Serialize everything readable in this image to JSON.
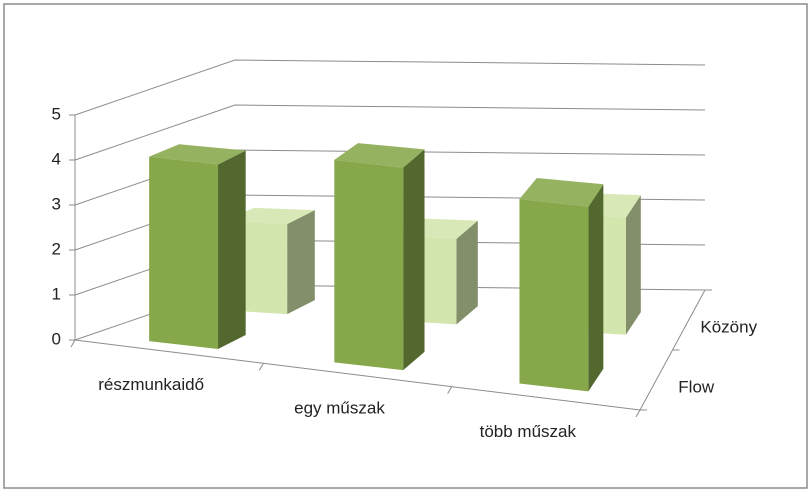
{
  "chart_data": {
    "type": "bar3d",
    "categories": [
      "részmunkaidő",
      "egy műszak",
      "több műszak"
    ],
    "series": [
      {
        "name": "Flow",
        "color": "#86a84a",
        "values": [
          4.1,
          4.5,
          4.1
        ]
      },
      {
        "name": "Közöny",
        "color": "#d3e6ad",
        "values": [
          2.0,
          1.9,
          2.6
        ]
      }
    ],
    "ylim": [
      0,
      5
    ],
    "yticks": [
      0,
      1,
      2,
      3,
      4,
      5
    ],
    "grid": true
  }
}
